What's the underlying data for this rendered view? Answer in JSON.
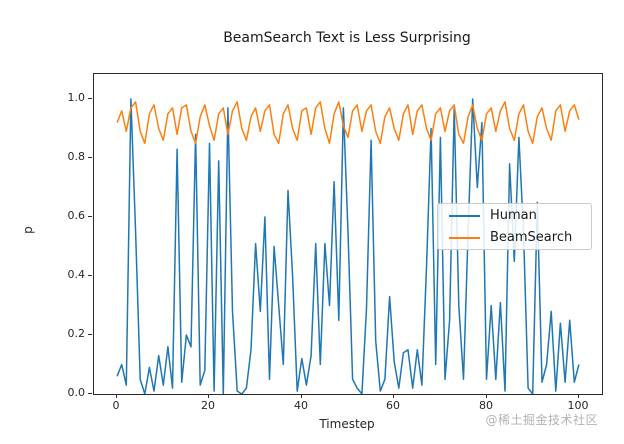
{
  "watermark": "@稀土掘金技术社区",
  "colors": {
    "human_line": "#1f77b4",
    "beamsearch_line": "#ff7f0e",
    "spine": "#2b2b2b",
    "watermark_text": "#b2b2b2"
  },
  "chart_data": {
    "type": "line",
    "title": "BeamSearch Text is Less Surprising",
    "xlabel": "Timestep",
    "ylabel": "p",
    "xlim": [
      -5,
      105
    ],
    "ylim": [
      0,
      1.085
    ],
    "grid": false,
    "legend_position": "center-right-inside",
    "x_ticks": [
      {
        "v": 0,
        "label": "0"
      },
      {
        "v": 20,
        "label": "20"
      },
      {
        "v": 40,
        "label": "40"
      },
      {
        "v": 60,
        "label": "60"
      },
      {
        "v": 80,
        "label": "80"
      },
      {
        "v": 100,
        "label": "100"
      }
    ],
    "y_ticks": [
      {
        "v": 0.0,
        "label": "0.0"
      },
      {
        "v": 0.2,
        "label": "0.2"
      },
      {
        "v": 0.4,
        "label": "0.4"
      },
      {
        "v": 0.6,
        "label": "0.6"
      },
      {
        "v": 0.8,
        "label": "0.8"
      },
      {
        "v": 1.0,
        "label": "1.0"
      }
    ],
    "x": [
      0,
      1,
      2,
      3,
      4,
      5,
      6,
      7,
      8,
      9,
      10,
      11,
      12,
      13,
      14,
      15,
      16,
      17,
      18,
      19,
      20,
      21,
      22,
      23,
      24,
      25,
      26,
      27,
      28,
      29,
      30,
      31,
      32,
      33,
      34,
      35,
      36,
      37,
      38,
      39,
      40,
      41,
      42,
      43,
      44,
      45,
      46,
      47,
      48,
      49,
      50,
      51,
      52,
      53,
      54,
      55,
      56,
      57,
      58,
      59,
      60,
      61,
      62,
      63,
      64,
      65,
      66,
      67,
      68,
      69,
      70,
      71,
      72,
      73,
      74,
      75,
      76,
      77,
      78,
      79,
      80,
      81,
      82,
      83,
      84,
      85,
      86,
      87,
      88,
      89,
      90,
      91,
      92,
      93,
      94,
      95,
      96,
      97,
      98,
      99,
      100
    ],
    "series": [
      {
        "name": "Human",
        "color": "#1f77b4",
        "values": [
          0.06,
          0.1,
          0.03,
          1.0,
          0.55,
          0.05,
          0.0,
          0.09,
          0.01,
          0.13,
          0.03,
          0.16,
          0.02,
          0.83,
          0.04,
          0.2,
          0.16,
          0.88,
          0.03,
          0.08,
          0.85,
          0.01,
          0.79,
          0.0,
          0.97,
          0.28,
          0.01,
          0.0,
          0.02,
          0.15,
          0.51,
          0.28,
          0.6,
          0.05,
          0.5,
          0.3,
          0.1,
          0.69,
          0.4,
          0.01,
          0.12,
          0.03,
          0.13,
          0.51,
          0.1,
          0.51,
          0.3,
          0.72,
          0.25,
          0.97,
          0.55,
          0.05,
          0.02,
          0.0,
          0.29,
          0.86,
          0.18,
          0.01,
          0.05,
          0.33,
          0.11,
          0.02,
          0.14,
          0.15,
          0.02,
          0.15,
          0.03,
          0.43,
          0.9,
          0.1,
          0.87,
          0.05,
          0.25,
          0.97,
          0.3,
          0.05,
          0.55,
          1.0,
          0.7,
          0.92,
          0.05,
          0.3,
          0.05,
          0.31,
          0.01,
          0.78,
          0.45,
          0.87,
          0.55,
          0.02,
          0.0,
          0.65,
          0.04,
          0.1,
          0.28,
          0.01,
          0.24,
          0.04,
          0.25,
          0.04,
          0.1
        ]
      },
      {
        "name": "BeamSearch",
        "color": "#ff7f0e",
        "values": [
          0.92,
          0.96,
          0.89,
          0.97,
          0.99,
          0.89,
          0.85,
          0.95,
          0.98,
          0.9,
          0.86,
          0.95,
          0.97,
          0.88,
          0.97,
          0.98,
          0.89,
          0.85,
          0.94,
          0.98,
          0.91,
          0.86,
          0.95,
          0.97,
          0.88,
          0.96,
          0.99,
          0.9,
          0.86,
          0.94,
          0.97,
          0.89,
          0.96,
          0.98,
          0.88,
          0.85,
          0.95,
          0.98,
          0.9,
          0.86,
          0.96,
          0.97,
          0.88,
          0.97,
          0.99,
          0.9,
          0.85,
          0.95,
          0.99,
          0.91,
          0.87,
          0.96,
          0.98,
          0.89,
          0.96,
          0.98,
          0.89,
          0.85,
          0.94,
          0.97,
          0.9,
          0.86,
          0.95,
          0.98,
          0.88,
          0.96,
          0.98,
          0.9,
          0.86,
          0.95,
          0.97,
          0.89,
          0.96,
          0.98,
          0.88,
          0.85,
          0.94,
          0.98,
          0.9,
          0.86,
          0.95,
          0.97,
          0.89,
          0.96,
          0.99,
          0.9,
          0.86,
          0.95,
          0.98,
          0.89,
          0.85,
          0.94,
          0.97,
          0.9,
          0.86,
          0.96,
          0.98,
          0.89,
          0.96,
          0.98,
          0.93
        ]
      }
    ]
  }
}
